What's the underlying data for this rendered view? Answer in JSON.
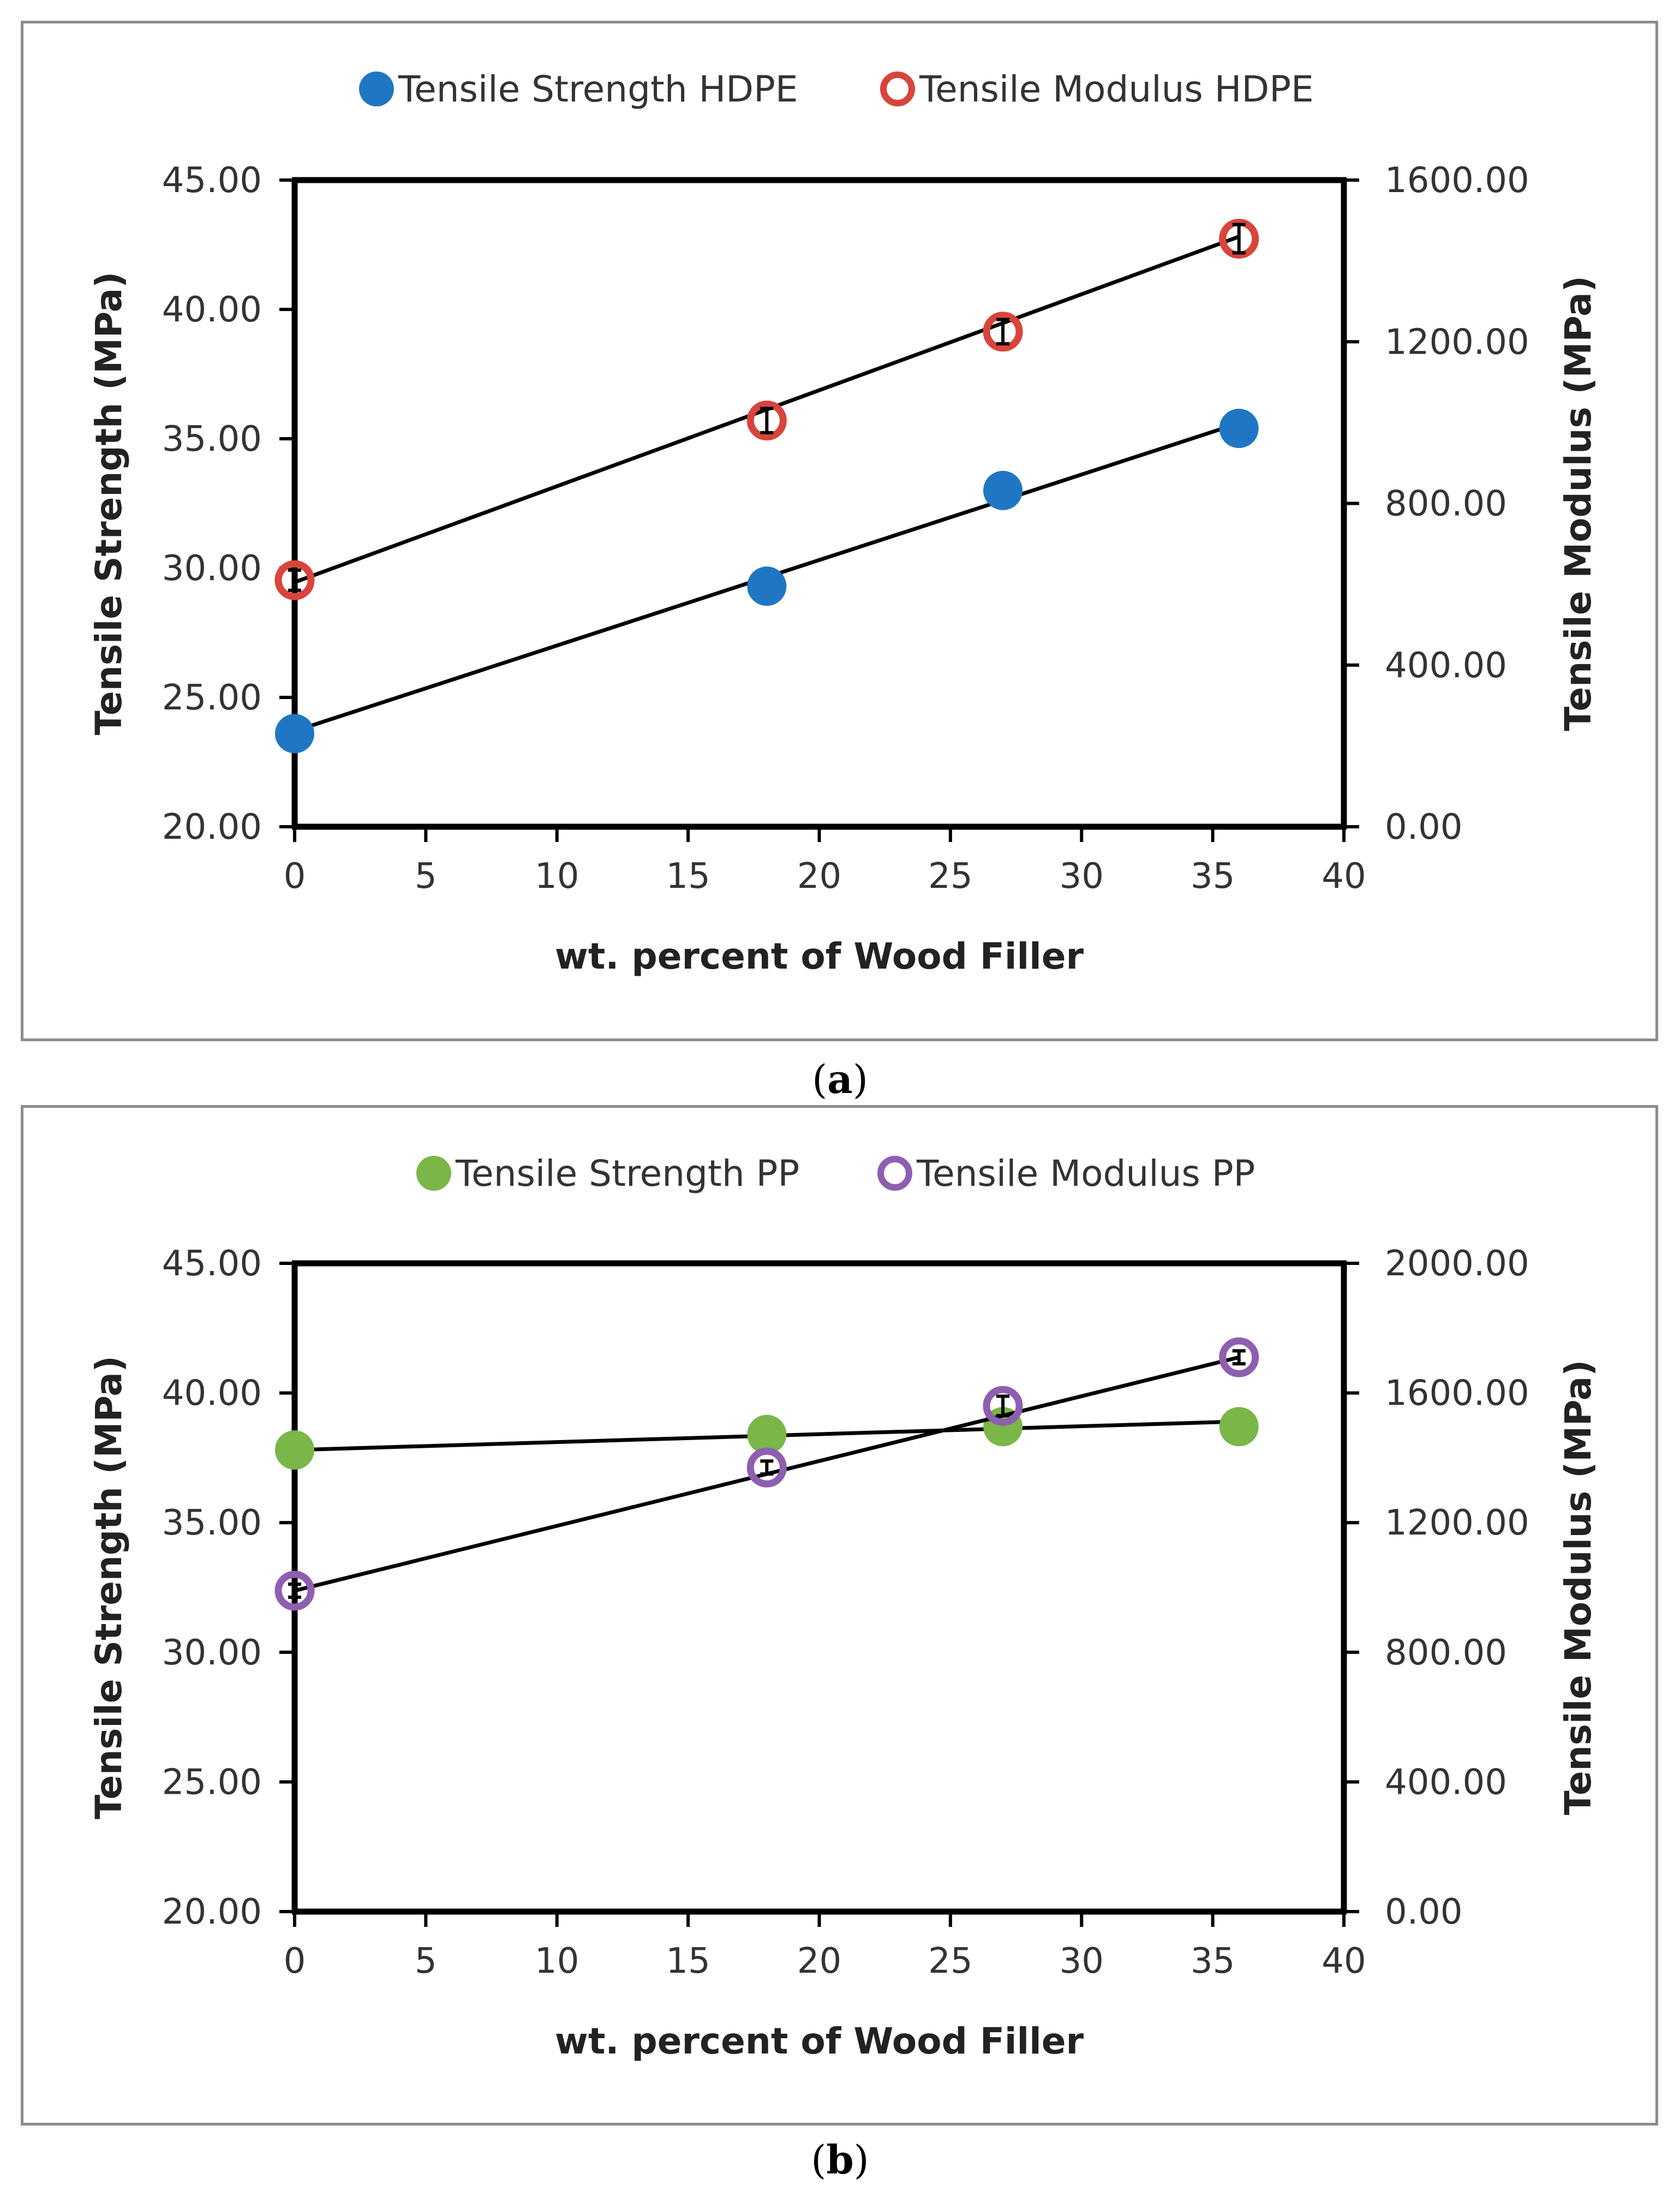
{
  "chart_data": [
    {
      "type": "scatter",
      "panel_label": "a",
      "xlabel": "wt. percent of Wood Filler",
      "ylabel_left": "Tensile Strength (MPa)",
      "ylabel_right": "Tensile Modulus (MPa)",
      "xlim": [
        0,
        40
      ],
      "xticks": [
        0,
        5,
        10,
        15,
        20,
        25,
        30,
        35,
        40
      ],
      "ylim_left": [
        20,
        45
      ],
      "yticks_left": [
        "20.00",
        "25.00",
        "30.00",
        "35.00",
        "40.00",
        "45.00"
      ],
      "ylim_right": [
        0,
        1600
      ],
      "yticks_right": [
        "0.00",
        "400.00",
        "800.00",
        "1200.00",
        "1600.00"
      ],
      "grid": false,
      "legend_position": "top",
      "series": [
        {
          "name": "Tensile Strength HDPE",
          "axis": "left",
          "marker": "filled-circle",
          "color": "#1f77c4",
          "x": [
            0,
            18,
            27,
            36
          ],
          "y": [
            23.6,
            29.3,
            33.0,
            35.4
          ],
          "trendline": {
            "x": [
              0,
              36
            ],
            "y": [
              23.7,
              35.6
            ]
          }
        },
        {
          "name": "Tensile Modulus HDPE",
          "axis": "right",
          "marker": "hollow-circle",
          "color": "#d9443c",
          "x": [
            0,
            18,
            27,
            36
          ],
          "y": [
            610,
            1005,
            1225,
            1455
          ],
          "error": [
            25,
            30,
            30,
            35
          ],
          "trendline": {
            "x": [
              0,
              36
            ],
            "y": [
              605,
              1460
            ]
          }
        }
      ]
    },
    {
      "type": "scatter",
      "panel_label": "b",
      "xlabel": "wt. percent of Wood Filler",
      "ylabel_left": "Tensile Strength (MPa)",
      "ylabel_right": "Tensile Modulus (MPa)",
      "xlim": [
        0,
        40
      ],
      "xticks": [
        0,
        5,
        10,
        15,
        20,
        25,
        30,
        35,
        40
      ],
      "ylim_left": [
        20,
        45
      ],
      "yticks_left": [
        "20.00",
        "25.00",
        "30.00",
        "35.00",
        "40.00",
        "45.00"
      ],
      "ylim_right": [
        0,
        2000
      ],
      "yticks_right": [
        "0.00",
        "400.00",
        "800.00",
        "1200.00",
        "1600.00",
        "2000.00"
      ],
      "grid": false,
      "legend_position": "top",
      "series": [
        {
          "name": "Tensile Strength PP",
          "axis": "left",
          "marker": "filled-circle",
          "color": "#7ab648",
          "x": [
            0,
            18,
            27,
            36
          ],
          "y": [
            37.8,
            38.4,
            38.7,
            38.7
          ],
          "trendline": {
            "x": [
              0,
              36
            ],
            "y": [
              37.8,
              38.9
            ]
          }
        },
        {
          "name": "Tensile Modulus PP",
          "axis": "right",
          "marker": "hollow-circle",
          "color": "#8e5fb0",
          "x": [
            0,
            18,
            27,
            36
          ],
          "y": [
            990,
            1370,
            1560,
            1710
          ],
          "error": [
            20,
            20,
            30,
            20
          ],
          "trendline": {
            "x": [
              0,
              36
            ],
            "y": [
              990,
              1710
            ]
          }
        }
      ]
    }
  ]
}
